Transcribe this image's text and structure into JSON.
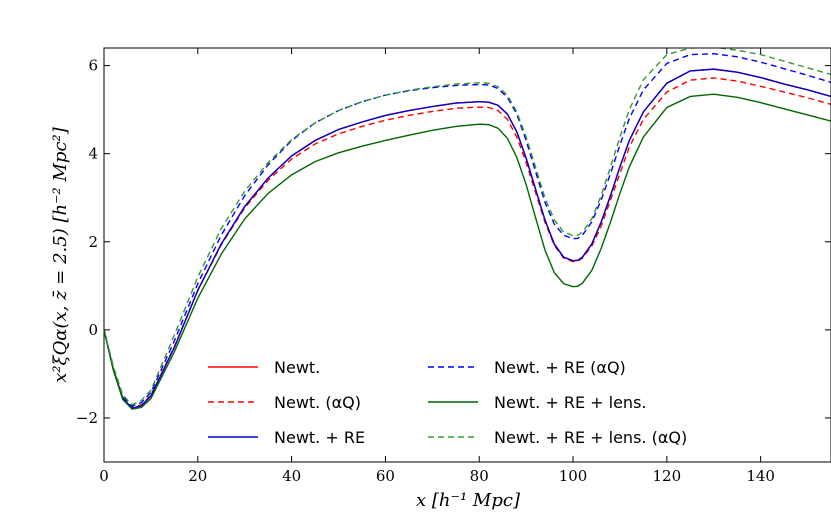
{
  "chart_data": {
    "type": "line",
    "title": "",
    "xlabel": "x [h⁻¹ Mpc]",
    "ylabel": "x²ξQα(x, z̄ = 2.5) [h⁻² Mpc²]",
    "xlim": [
      0,
      155
    ],
    "ylim": [
      -3,
      6.4
    ],
    "grid": false,
    "legend_position": "bottom-center",
    "xticks": [
      0,
      20,
      40,
      60,
      80,
      100,
      120,
      140
    ],
    "xtick_labels": [
      "0",
      "20",
      "40",
      "60",
      "80",
      "100",
      "120",
      "140"
    ],
    "yticks": [
      -2,
      0,
      2,
      4,
      6
    ],
    "ytick_labels": [
      "−2",
      "0",
      "2",
      "4",
      "6"
    ],
    "x": [
      0,
      2,
      4,
      6,
      8,
      10,
      15,
      20,
      25,
      30,
      35,
      40,
      45,
      50,
      55,
      60,
      65,
      70,
      75,
      80,
      82,
      84,
      86,
      88,
      90,
      92,
      94,
      96,
      98,
      100,
      101,
      102,
      104,
      106,
      108,
      110,
      112,
      115,
      120,
      125,
      130,
      135,
      140,
      145,
      150,
      155
    ],
    "series": [
      {
        "name": "Newt.",
        "color": "#ff0000",
        "dash": "solid",
        "values": [
          0.0,
          -0.9,
          -1.55,
          -1.78,
          -1.72,
          -1.5,
          -0.4,
          0.9,
          1.95,
          2.8,
          3.45,
          3.95,
          4.3,
          4.55,
          4.72,
          4.87,
          4.98,
          5.07,
          5.15,
          5.18,
          5.17,
          5.1,
          4.9,
          4.5,
          3.9,
          3.2,
          2.5,
          1.95,
          1.65,
          1.57,
          1.58,
          1.65,
          1.95,
          2.45,
          3.05,
          3.7,
          4.3,
          4.95,
          5.6,
          5.88,
          5.92,
          5.85,
          5.73,
          5.58,
          5.45,
          5.3
        ]
      },
      {
        "name": "Newt. (αQ)",
        "color": "#ff0000",
        "dash": "dashed",
        "values": [
          0.0,
          -0.9,
          -1.55,
          -1.76,
          -1.7,
          -1.48,
          -0.38,
          0.9,
          1.93,
          2.77,
          3.4,
          3.88,
          4.22,
          4.45,
          4.62,
          4.76,
          4.87,
          4.96,
          5.03,
          5.06,
          5.05,
          4.98,
          4.78,
          4.38,
          3.8,
          3.12,
          2.45,
          1.92,
          1.63,
          1.55,
          1.56,
          1.63,
          1.9,
          2.35,
          2.95,
          3.55,
          4.15,
          4.78,
          5.4,
          5.67,
          5.72,
          5.65,
          5.53,
          5.4,
          5.27,
          5.12
        ]
      },
      {
        "name": "Newt. + RE",
        "color": "#0000cc",
        "dash": "solid",
        "values": [
          0.0,
          -0.9,
          -1.55,
          -1.78,
          -1.72,
          -1.5,
          -0.4,
          0.9,
          1.95,
          2.8,
          3.45,
          3.95,
          4.3,
          4.55,
          4.72,
          4.87,
          4.98,
          5.07,
          5.15,
          5.18,
          5.17,
          5.1,
          4.9,
          4.5,
          3.9,
          3.2,
          2.5,
          1.95,
          1.65,
          1.57,
          1.58,
          1.65,
          1.95,
          2.45,
          3.05,
          3.7,
          4.3,
          4.95,
          5.6,
          5.88,
          5.92,
          5.85,
          5.73,
          5.58,
          5.45,
          5.3
        ]
      },
      {
        "name": "Newt. + RE (αQ)",
        "color": "#0000ff",
        "dash": "dashed",
        "values": [
          0.0,
          -0.85,
          -1.5,
          -1.73,
          -1.65,
          -1.42,
          -0.25,
          1.05,
          2.15,
          3.05,
          3.75,
          4.3,
          4.7,
          4.98,
          5.18,
          5.33,
          5.43,
          5.5,
          5.55,
          5.57,
          5.56,
          5.48,
          5.28,
          4.9,
          4.3,
          3.6,
          2.9,
          2.4,
          2.15,
          2.07,
          2.08,
          2.15,
          2.45,
          2.95,
          3.55,
          4.2,
          4.8,
          5.45,
          6.05,
          6.25,
          6.27,
          6.2,
          6.08,
          5.93,
          5.78,
          5.62
        ]
      },
      {
        "name": "Newt. + RE + lens.",
        "color": "#006600",
        "dash": "solid",
        "values": [
          0.0,
          -0.92,
          -1.58,
          -1.8,
          -1.76,
          -1.56,
          -0.5,
          0.72,
          1.72,
          2.52,
          3.1,
          3.52,
          3.82,
          4.02,
          4.17,
          4.3,
          4.42,
          4.53,
          4.62,
          4.67,
          4.66,
          4.58,
          4.35,
          3.92,
          3.3,
          2.55,
          1.82,
          1.3,
          1.05,
          0.98,
          0.99,
          1.06,
          1.35,
          1.85,
          2.45,
          3.1,
          3.7,
          4.38,
          5.05,
          5.3,
          5.35,
          5.28,
          5.16,
          5.02,
          4.88,
          4.74
        ]
      },
      {
        "name": "Newt. + RE + lens. (αQ)",
        "color": "#339933",
        "dash": "dashed",
        "values": [
          0.0,
          -0.83,
          -1.48,
          -1.7,
          -1.6,
          -1.37,
          -0.12,
          1.2,
          2.3,
          3.15,
          3.8,
          4.32,
          4.7,
          4.98,
          5.18,
          5.33,
          5.44,
          5.52,
          5.58,
          5.61,
          5.6,
          5.52,
          5.33,
          4.95,
          4.38,
          3.7,
          3.0,
          2.5,
          2.22,
          2.14,
          2.15,
          2.22,
          2.52,
          3.05,
          3.7,
          4.38,
          5.0,
          5.68,
          6.25,
          6.4,
          6.42,
          6.35,
          6.25,
          6.1,
          5.95,
          5.8
        ]
      }
    ]
  }
}
